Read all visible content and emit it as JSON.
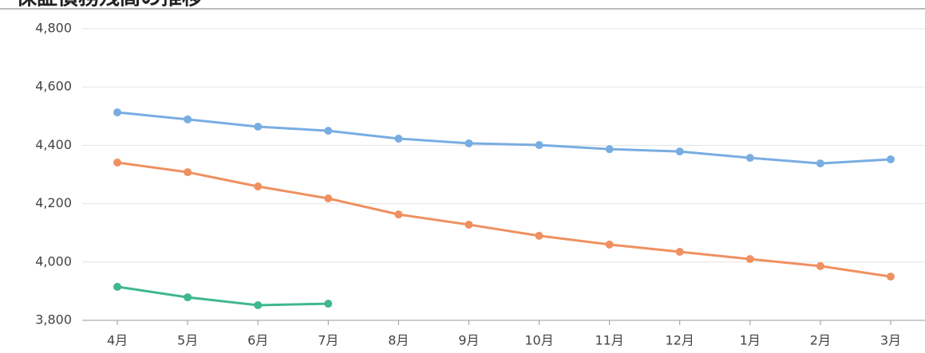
{
  "chart_data": {
    "type": "line",
    "title": "保証債務残高の推移",
    "categories": [
      "4月",
      "5月",
      "6月",
      "7月",
      "8月",
      "9月",
      "10月",
      "11月",
      "12月",
      "1月",
      "2月",
      "3月"
    ],
    "series": [
      {
        "color": "#79ade2",
        "values": [
          4513,
          4489,
          4464,
          4450,
          4423,
          4407,
          4401,
          4387,
          4379,
          4357,
          4338,
          4352
        ]
      },
      {
        "color": "#ef9060",
        "values": [
          4341,
          4308,
          4259,
          4218,
          4163,
          4128,
          4090,
          4060,
          4035,
          4010,
          3986,
          3950
        ]
      },
      {
        "color": "#3fb88b",
        "values": [
          3915,
          3879,
          3852,
          3857,
          null,
          null,
          null,
          null,
          null,
          null,
          null,
          null
        ]
      }
    ],
    "ylim": [
      3800,
      4800
    ],
    "yticks": [
      {
        "value": 3800,
        "label": "3,800"
      },
      {
        "value": 4000,
        "label": "4,000"
      },
      {
        "value": 4200,
        "label": "4,200"
      },
      {
        "value": 4400,
        "label": "4,400"
      },
      {
        "value": 4600,
        "label": "4,600"
      },
      {
        "value": 4800,
        "label": "4,800"
      }
    ],
    "grid": true
  }
}
